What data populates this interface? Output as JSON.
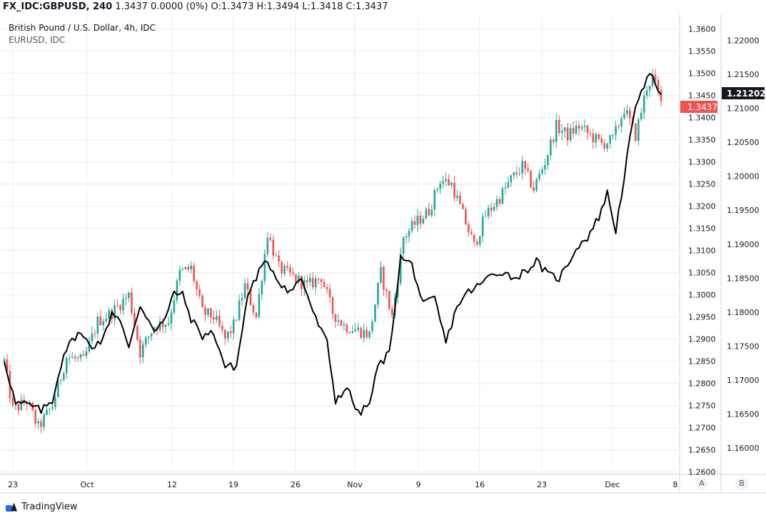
{
  "header": {
    "symbol": "FX_IDC:GBPUSD, 240",
    "quote": "1.3437 0.0000 (0%) O:1.3473 H:1.3494 L:1.3418 C:1.3437"
  },
  "legend": {
    "main": "British Pound / U.S. Dollar, 4h, IDC",
    "compare": "EURUSD, IDC"
  },
  "footer": {
    "brand": "TradingView"
  },
  "axis_buttons": {
    "a": "A",
    "b": "B"
  },
  "colors": {
    "up": "#26a69a",
    "down": "#ef5350",
    "compare": "#000000",
    "grid": "#e9ecf2"
  },
  "chart_data": {
    "type": "candlestick",
    "title": "British Pound / U.S. Dollar, 4h, IDC",
    "x_tick_labels": [
      "23",
      "Oct",
      "12",
      "19",
      "26",
      "Nov",
      "9",
      "16",
      "23",
      "Dec",
      "8"
    ],
    "y_left": {
      "label": "GBPUSD",
      "range": [
        1.2585,
        1.3625
      ],
      "tick_labels": [
        "1.3600",
        "1.3550",
        "1.3500",
        "1.3450",
        "1.3400",
        "1.3350",
        "1.3300",
        "1.3250",
        "1.3200",
        "1.3150",
        "1.3100",
        "1.3050",
        "1.3000",
        "1.2950",
        "1.2900",
        "1.2850",
        "1.2800",
        "1.2750",
        "1.2700",
        "1.2650",
        "1.2600"
      ],
      "last_value_label": "1.3437"
    },
    "y_right": {
      "label": "EURUSD",
      "range": [
        1.1555,
        1.2233
      ],
      "tick_labels": [
        "1.22000",
        "1.21500",
        "1.21000",
        "1.20500",
        "1.20000",
        "1.19500",
        "1.19000",
        "1.18500",
        "1.18000",
        "1.17500",
        "1.17000",
        "1.16500",
        "1.16000"
      ],
      "last_value_label": "1.21202"
    },
    "gbpusd_close_anchors": [
      [
        0,
        1.285
      ],
      [
        3,
        1.274
      ],
      [
        8,
        1.276
      ],
      [
        12,
        1.27
      ],
      [
        17,
        1.275
      ],
      [
        22,
        1.286
      ],
      [
        28,
        1.285
      ],
      [
        33,
        1.294
      ],
      [
        38,
        1.296
      ],
      [
        44,
        1.3
      ],
      [
        48,
        1.287
      ],
      [
        53,
        1.293
      ],
      [
        58,
        1.294
      ],
      [
        62,
        1.305
      ],
      [
        66,
        1.306
      ],
      [
        70,
        1.296
      ],
      [
        74,
        1.295
      ],
      [
        78,
        1.29
      ],
      [
        81,
        1.293
      ],
      [
        85,
        1.302
      ],
      [
        89,
        1.295
      ],
      [
        93,
        1.314
      ],
      [
        97,
        1.306
      ],
      [
        102,
        1.304
      ],
      [
        107,
        1.302
      ],
      [
        112,
        1.304
      ],
      [
        116,
        1.296
      ],
      [
        120,
        1.293
      ],
      [
        125,
        1.292
      ],
      [
        129,
        1.291
      ],
      [
        133,
        1.305
      ],
      [
        137,
        1.295
      ],
      [
        141,
        1.313
      ],
      [
        145,
        1.316
      ],
      [
        150,
        1.319
      ],
      [
        154,
        1.326
      ],
      [
        158,
        1.325
      ],
      [
        162,
        1.318
      ],
      [
        166,
        1.311
      ],
      [
        170,
        1.318
      ],
      [
        175,
        1.322
      ],
      [
        179,
        1.326
      ],
      [
        183,
        1.329
      ],
      [
        187,
        1.324
      ],
      [
        191,
        1.33
      ],
      [
        195,
        1.338
      ],
      [
        199,
        1.336
      ],
      [
        203,
        1.338
      ],
      [
        207,
        1.336
      ],
      [
        211,
        1.334
      ],
      [
        215,
        1.335
      ],
      [
        219,
        1.342
      ],
      [
        223,
        1.336
      ],
      [
        227,
        1.347
      ],
      [
        229,
        1.349
      ],
      [
        232,
        1.3437
      ]
    ],
    "eurusd_close_anchors": [
      [
        0,
        1.173
      ],
      [
        4,
        1.1665
      ],
      [
        8,
        1.1665
      ],
      [
        13,
        1.1655
      ],
      [
        17,
        1.167
      ],
      [
        21,
        1.174
      ],
      [
        26,
        1.177
      ],
      [
        31,
        1.175
      ],
      [
        35,
        1.176
      ],
      [
        38,
        1.18
      ],
      [
        41,
        1.179
      ],
      [
        44,
        1.1745
      ],
      [
        48,
        1.181
      ],
      [
        53,
        1.1775
      ],
      [
        57,
        1.179
      ],
      [
        60,
        1.183
      ],
      [
        63,
        1.1825
      ],
      [
        66,
        1.179
      ],
      [
        70,
        1.1765
      ],
      [
        74,
        1.177
      ],
      [
        78,
        1.172
      ],
      [
        82,
        1.172
      ],
      [
        86,
        1.1825
      ],
      [
        90,
        1.186
      ],
      [
        93,
        1.1875
      ],
      [
        97,
        1.1845
      ],
      [
        101,
        1.183
      ],
      [
        105,
        1.185
      ],
      [
        110,
        1.179
      ],
      [
        114,
        1.1755
      ],
      [
        117,
        1.167
      ],
      [
        121,
        1.169
      ],
      [
        125,
        1.165
      ],
      [
        129,
        1.1665
      ],
      [
        132,
        1.172
      ],
      [
        136,
        1.174
      ],
      [
        140,
        1.188
      ],
      [
        144,
        1.187
      ],
      [
        148,
        1.181
      ],
      [
        152,
        1.182
      ],
      [
        156,
        1.1755
      ],
      [
        160,
        1.181
      ],
      [
        164,
        1.183
      ],
      [
        168,
        1.184
      ],
      [
        172,
        1.1855
      ],
      [
        176,
        1.186
      ],
      [
        180,
        1.185
      ],
      [
        184,
        1.186
      ],
      [
        188,
        1.1875
      ],
      [
        192,
        1.1855
      ],
      [
        196,
        1.185
      ],
      [
        199,
        1.187
      ],
      [
        202,
        1.1895
      ],
      [
        206,
        1.191
      ],
      [
        210,
        1.194
      ],
      [
        213,
        1.1975
      ],
      [
        216,
        1.192
      ],
      [
        219,
        1.2
      ],
      [
        222,
        1.208
      ],
      [
        225,
        1.213
      ],
      [
        229,
        1.215
      ],
      [
        232,
        1.212
      ]
    ],
    "grid": true
  }
}
